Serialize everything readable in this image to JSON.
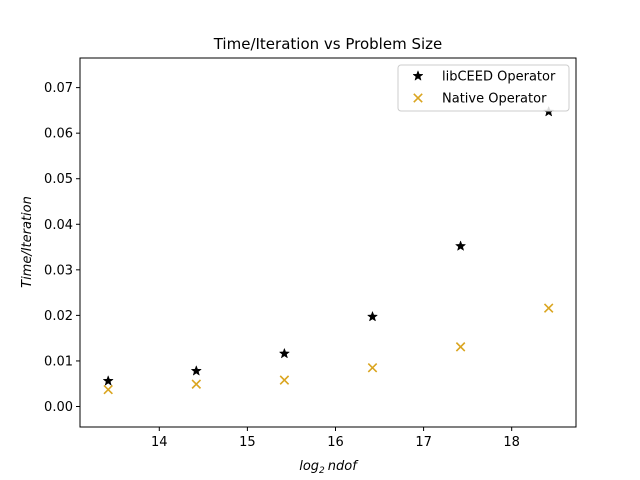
{
  "chart_data": {
    "type": "scatter",
    "title": "Time/Iteration vs Problem Size",
    "xlabel": "log",
    "xlabel_sub": "2",
    "xlabel_tail": "ndof",
    "ylabel": "Time/Iteration",
    "xlim": [
      13.1,
      18.73
    ],
    "ylim": [
      -0.0045,
      0.0765
    ],
    "xticks": [
      14,
      15,
      16,
      17,
      18
    ],
    "xtick_labels": [
      "14",
      "15",
      "16",
      "17",
      "18"
    ],
    "yticks": [
      0.0,
      0.01,
      0.02,
      0.03,
      0.04,
      0.05,
      0.06,
      0.07
    ],
    "ytick_labels": [
      "0.00",
      "0.01",
      "0.02",
      "0.03",
      "0.04",
      "0.05",
      "0.06",
      "0.07"
    ],
    "grid": false,
    "legend_position": "top-right",
    "series": [
      {
        "name": "libCEED Operator",
        "marker": "star",
        "color": "#000000",
        "x": [
          13.42,
          14.42,
          15.42,
          16.42,
          17.42,
          18.42
        ],
        "y": [
          0.0056,
          0.0078,
          0.0116,
          0.0197,
          0.0352,
          0.0647
        ]
      },
      {
        "name": "Native Operator",
        "marker": "x",
        "color": "#daa520",
        "x": [
          13.42,
          14.42,
          15.42,
          16.42,
          17.42,
          18.42
        ],
        "y": [
          0.0037,
          0.0049,
          0.0058,
          0.0085,
          0.0131,
          0.0216
        ]
      }
    ]
  }
}
